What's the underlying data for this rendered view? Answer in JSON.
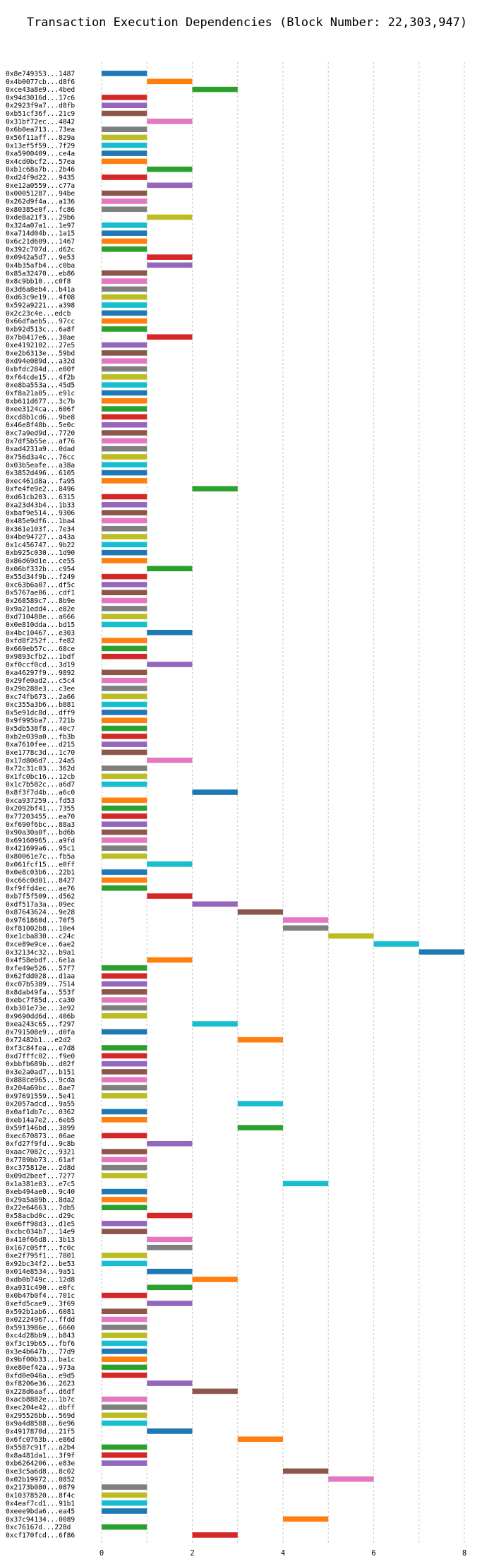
{
  "chart_data": {
    "type": "bar",
    "orientation": "horizontal",
    "title": "Transaction Execution Dependencies (Block Number: 22,303,947)",
    "xlabel": "",
    "ylabel": "",
    "xlim": [
      0,
      8
    ],
    "xticks": [
      "0",
      "2",
      "4",
      "6",
      "8"
    ],
    "grid": true,
    "colors": [
      "#1f77b4",
      "#ff7f0e",
      "#2ca02c",
      "#d62728",
      "#9467bd",
      "#8c564b",
      "#e377c2",
      "#7f7f7f",
      "#bcbd22",
      "#17becf"
    ],
    "rows": [
      {
        "tx": "0x8e749353...1487",
        "start": 0,
        "end": 1
      },
      {
        "tx": "0x4b0077cb...d8f6",
        "start": 1,
        "end": 2
      },
      {
        "tx": "0xce43a8e9...4bed",
        "start": 2,
        "end": 3
      },
      {
        "tx": "0x94d3016d...17c6",
        "start": 0,
        "end": 1
      },
      {
        "tx": "0x2923f9a7...d8fb",
        "start": 0,
        "end": 1
      },
      {
        "tx": "0xb51cf36f...21c9",
        "start": 0,
        "end": 1
      },
      {
        "tx": "0x31bf72ec...4842",
        "start": 1,
        "end": 2
      },
      {
        "tx": "0x6b0ea713...73ea",
        "start": 0,
        "end": 1
      },
      {
        "tx": "0x56f11aff...829a",
        "start": 0,
        "end": 1
      },
      {
        "tx": "0x13ef5f59...7f29",
        "start": 0,
        "end": 1
      },
      {
        "tx": "0xa5900409...ce4a",
        "start": 0,
        "end": 1
      },
      {
        "tx": "0x4cd0bcf2...57ea",
        "start": 0,
        "end": 1
      },
      {
        "tx": "0xb1c68a7b...2b46",
        "start": 1,
        "end": 2
      },
      {
        "tx": "0xd24f9d22...9435",
        "start": 0,
        "end": 1
      },
      {
        "tx": "0xe12a0559...c77a",
        "start": 1,
        "end": 2
      },
      {
        "tx": "0x00051287...94be",
        "start": 0,
        "end": 1
      },
      {
        "tx": "0x262d9f4a...a136",
        "start": 0,
        "end": 1
      },
      {
        "tx": "0x80385e0f...fc86",
        "start": 0,
        "end": 1
      },
      {
        "tx": "0xde8a21f3...29b6",
        "start": 1,
        "end": 2
      },
      {
        "tx": "0x324a07a1...1e97",
        "start": 0,
        "end": 1
      },
      {
        "tx": "0xa714d04b...1a15",
        "start": 0,
        "end": 1
      },
      {
        "tx": "0x6c21d609...1467",
        "start": 0,
        "end": 1
      },
      {
        "tx": "0x392c707d...d62c",
        "start": 0,
        "end": 1
      },
      {
        "tx": "0x0942a5d7...9e53",
        "start": 1,
        "end": 2
      },
      {
        "tx": "0x4b35afb4...c0ba",
        "start": 1,
        "end": 2
      },
      {
        "tx": "0x85a32470...eb86",
        "start": 0,
        "end": 1
      },
      {
        "tx": "0x8c9bb10...c0f8",
        "start": 0,
        "end": 1
      },
      {
        "tx": "0x3d6a8eb4...b41a",
        "start": 0,
        "end": 1
      },
      {
        "tx": "0xd63c9e19...4f08",
        "start": 0,
        "end": 1
      },
      {
        "tx": "0x592a9221...a398",
        "start": 0,
        "end": 1
      },
      {
        "tx": "0x2c23c4e...edcb",
        "start": 0,
        "end": 1
      },
      {
        "tx": "0x66dfaeb5...97cc",
        "start": 0,
        "end": 1
      },
      {
        "tx": "0xb92d513c...6a8f",
        "start": 0,
        "end": 1
      },
      {
        "tx": "0x7b0417e6...30ae",
        "start": 1,
        "end": 2
      },
      {
        "tx": "0xe4192102...27e5",
        "start": 0,
        "end": 1
      },
      {
        "tx": "0xe2b6313e...59bd",
        "start": 0,
        "end": 1
      },
      {
        "tx": "0xd94e089d...a32d",
        "start": 0,
        "end": 1
      },
      {
        "tx": "0xbfdc284d...e00f",
        "start": 0,
        "end": 1
      },
      {
        "tx": "0xf64cde15...4f2b",
        "start": 0,
        "end": 1
      },
      {
        "tx": "0xe8ba553a...45d5",
        "start": 0,
        "end": 1
      },
      {
        "tx": "0xf8a21a05...e91c",
        "start": 0,
        "end": 1
      },
      {
        "tx": "0xb611d677...3c7b",
        "start": 0,
        "end": 1
      },
      {
        "tx": "0xee3124ca...606f",
        "start": 0,
        "end": 1
      },
      {
        "tx": "0xcd8b1cd6...9be8",
        "start": 0,
        "end": 1
      },
      {
        "tx": "0x46e8f48b...5e0c",
        "start": 0,
        "end": 1
      },
      {
        "tx": "0xc7a9ed9d...7720",
        "start": 0,
        "end": 1
      },
      {
        "tx": "0x7df5b55e...af76",
        "start": 0,
        "end": 1
      },
      {
        "tx": "0xad4231a9...0dad",
        "start": 0,
        "end": 1
      },
      {
        "tx": "0x756d3a4c...76cc",
        "start": 0,
        "end": 1
      },
      {
        "tx": "0x03b5eafe...a38a",
        "start": 0,
        "end": 1
      },
      {
        "tx": "0x3852d496...6105",
        "start": 0,
        "end": 1
      },
      {
        "tx": "0xec461d8a...fa95",
        "start": 0,
        "end": 1
      },
      {
        "tx": "0xfe4fe9e2...8496",
        "start": 2,
        "end": 3
      },
      {
        "tx": "0xd61cb203...6315",
        "start": 0,
        "end": 1
      },
      {
        "tx": "0xa23d43b4...1b33",
        "start": 0,
        "end": 1
      },
      {
        "tx": "0xbaf9e514...9306",
        "start": 0,
        "end": 1
      },
      {
        "tx": "0x485e9df6...1ba4",
        "start": 0,
        "end": 1
      },
      {
        "tx": "0x361e103f...7e34",
        "start": 0,
        "end": 1
      },
      {
        "tx": "0x4be94727...a43a",
        "start": 0,
        "end": 1
      },
      {
        "tx": "0x1c456747...9b22",
        "start": 0,
        "end": 1
      },
      {
        "tx": "0xb925c030...1d90",
        "start": 0,
        "end": 1
      },
      {
        "tx": "0x86d69d1e...ce55",
        "start": 0,
        "end": 1
      },
      {
        "tx": "0x06bf332b...c954",
        "start": 1,
        "end": 2
      },
      {
        "tx": "0x55d34f9b...f249",
        "start": 0,
        "end": 1
      },
      {
        "tx": "0xc63b6a07...df5c",
        "start": 0,
        "end": 1
      },
      {
        "tx": "0x5767ae06...cdf1",
        "start": 0,
        "end": 1
      },
      {
        "tx": "0x268589c7...8b9e",
        "start": 0,
        "end": 1
      },
      {
        "tx": "0x9a21edd4...e82e",
        "start": 0,
        "end": 1
      },
      {
        "tx": "0xd710488e...a666",
        "start": 0,
        "end": 1
      },
      {
        "tx": "0x0e810dda...bd15",
        "start": 0,
        "end": 1
      },
      {
        "tx": "0x4bc10467...e303",
        "start": 1,
        "end": 2
      },
      {
        "tx": "0xfd8f252f...fe82",
        "start": 0,
        "end": 1
      },
      {
        "tx": "0x669eb57c...68ce",
        "start": 0,
        "end": 1
      },
      {
        "tx": "0x9893cfb2...1bdf",
        "start": 0,
        "end": 1
      },
      {
        "tx": "0xf0ccf0cd...3d19",
        "start": 1,
        "end": 2
      },
      {
        "tx": "0xa46297f9...9892",
        "start": 0,
        "end": 1
      },
      {
        "tx": "0x29fe0ad2...c5c4",
        "start": 0,
        "end": 1
      },
      {
        "tx": "0x29b288e3...c3ee",
        "start": 0,
        "end": 1
      },
      {
        "tx": "0xc74fb673...2a66",
        "start": 0,
        "end": 1
      },
      {
        "tx": "0xc355a3b6...b881",
        "start": 0,
        "end": 1
      },
      {
        "tx": "0x5e91dc8d...dff9",
        "start": 0,
        "end": 1
      },
      {
        "tx": "0x9f995ba7...721b",
        "start": 0,
        "end": 1
      },
      {
        "tx": "0x5db538f8...40c7",
        "start": 0,
        "end": 1
      },
      {
        "tx": "0xb2e039a0...fb3b",
        "start": 0,
        "end": 1
      },
      {
        "tx": "0xa7610fee...d215",
        "start": 0,
        "end": 1
      },
      {
        "tx": "0xe1778c3d...1c70",
        "start": 0,
        "end": 1
      },
      {
        "tx": "0x17d806d7...24a5",
        "start": 1,
        "end": 2
      },
      {
        "tx": "0x72c31c03...362d",
        "start": 0,
        "end": 1
      },
      {
        "tx": "0x1fc0bc16...12cb",
        "start": 0,
        "end": 1
      },
      {
        "tx": "0x1c7b582c...a6d7",
        "start": 0,
        "end": 1
      },
      {
        "tx": "0x8f3f7d4b...a6c0",
        "start": 2,
        "end": 3
      },
      {
        "tx": "0xca937259...fd53",
        "start": 0,
        "end": 1
      },
      {
        "tx": "0x2092bf41...7355",
        "start": 0,
        "end": 1
      },
      {
        "tx": "0x77203455...ea70",
        "start": 0,
        "end": 1
      },
      {
        "tx": "0xf690f6bc...88a3",
        "start": 0,
        "end": 1
      },
      {
        "tx": "0x90a30a0f...bd6b",
        "start": 0,
        "end": 1
      },
      {
        "tx": "0x69160965...a9fd",
        "start": 0,
        "end": 1
      },
      {
        "tx": "0x421699a6...95c1",
        "start": 0,
        "end": 1
      },
      {
        "tx": "0x80061e7c...fb5a",
        "start": 0,
        "end": 1
      },
      {
        "tx": "0x061fcf15...e0ff",
        "start": 1,
        "end": 2
      },
      {
        "tx": "0x0e8c03b6...22b1",
        "start": 0,
        "end": 1
      },
      {
        "tx": "0xc66c0d01...8427",
        "start": 0,
        "end": 1
      },
      {
        "tx": "0xf9ffd4ec...ae76",
        "start": 0,
        "end": 1
      },
      {
        "tx": "0xb7f5f509...d562",
        "start": 1,
        "end": 2
      },
      {
        "tx": "0xdf517a3a...09ec",
        "start": 2,
        "end": 3
      },
      {
        "tx": "0x87643624...9e28",
        "start": 3,
        "end": 4
      },
      {
        "tx": "0x9761860d...70f5",
        "start": 4,
        "end": 5
      },
      {
        "tx": "0xf81002b8...10e4",
        "start": 4,
        "end": 5
      },
      {
        "tx": "0xe1cba830...c24c",
        "start": 5,
        "end": 6
      },
      {
        "tx": "0xce89e9ce...6ae2",
        "start": 6,
        "end": 7
      },
      {
        "tx": "0x32134c32...b9a1",
        "start": 7,
        "end": 8
      },
      {
        "tx": "0x4f58ebdf...6e1a",
        "start": 1,
        "end": 2
      },
      {
        "tx": "0xfe49e526...57f7",
        "start": 0,
        "end": 1
      },
      {
        "tx": "0x62fdd028...d1aa",
        "start": 0,
        "end": 1
      },
      {
        "tx": "0xc07b5389...7514",
        "start": 0,
        "end": 1
      },
      {
        "tx": "0x8dab49fa...553f",
        "start": 0,
        "end": 1
      },
      {
        "tx": "0xebc7f85d...ca30",
        "start": 0,
        "end": 1
      },
      {
        "tx": "0xb301e73e...3e92",
        "start": 0,
        "end": 1
      },
      {
        "tx": "0x9690dd6d...406b",
        "start": 0,
        "end": 1
      },
      {
        "tx": "0xea243c65...f297",
        "start": 2,
        "end": 3
      },
      {
        "tx": "0x791508e9...d0fa",
        "start": 0,
        "end": 1
      },
      {
        "tx": "0x72482b1...e2d2",
        "start": 3,
        "end": 4
      },
      {
        "tx": "0xf3c84fea...e7d8",
        "start": 0,
        "end": 1
      },
      {
        "tx": "0xd7fffc02...f9e0",
        "start": 0,
        "end": 1
      },
      {
        "tx": "0xbbfb689b...d02f",
        "start": 0,
        "end": 1
      },
      {
        "tx": "0x3e2a0ad7...b151",
        "start": 0,
        "end": 1
      },
      {
        "tx": "0x888ce965...9cda",
        "start": 0,
        "end": 1
      },
      {
        "tx": "0x204a69bc...8ae7",
        "start": 0,
        "end": 1
      },
      {
        "tx": "0x97691559...5e41",
        "start": 0,
        "end": 1
      },
      {
        "tx": "0x2057adcd...9a55",
        "start": 3,
        "end": 4
      },
      {
        "tx": "0x0af1db7c...0362",
        "start": 0,
        "end": 1
      },
      {
        "tx": "0xeb14a7e2...6eb5",
        "start": 0,
        "end": 1
      },
      {
        "tx": "0x59f146bd...3899",
        "start": 3,
        "end": 4
      },
      {
        "tx": "0xec670873...06ae",
        "start": 0,
        "end": 1
      },
      {
        "tx": "0xfd27f9fd...9c8b",
        "start": 1,
        "end": 2
      },
      {
        "tx": "0xaac7082c...9321",
        "start": 0,
        "end": 1
      },
      {
        "tx": "0x7789bb73...61af",
        "start": 0,
        "end": 1
      },
      {
        "tx": "0xc375812e...2d8d",
        "start": 0,
        "end": 1
      },
      {
        "tx": "0x09d2beef...7277",
        "start": 0,
        "end": 1
      },
      {
        "tx": "0x1a381e03...e7c5",
        "start": 4,
        "end": 5
      },
      {
        "tx": "0xeb494ae0...9c40",
        "start": 0,
        "end": 1
      },
      {
        "tx": "0x29a5a89b...8da2",
        "start": 0,
        "end": 1
      },
      {
        "tx": "0x22e64663...7db5",
        "start": 0,
        "end": 1
      },
      {
        "tx": "0x58acbd0c...d29c",
        "start": 1,
        "end": 2
      },
      {
        "tx": "0xe6ff98d3...d1e5",
        "start": 0,
        "end": 1
      },
      {
        "tx": "0xcbc034b7...14e9",
        "start": 0,
        "end": 1
      },
      {
        "tx": "0x410f66d8...3b13",
        "start": 1,
        "end": 2
      },
      {
        "tx": "0x167c05ff...fc0c",
        "start": 1,
        "end": 2
      },
      {
        "tx": "0xe2f795f1...7801",
        "start": 0,
        "end": 1
      },
      {
        "tx": "0x92bc34f2...be53",
        "start": 0,
        "end": 1
      },
      {
        "tx": "0x014e8534...9a51",
        "start": 1,
        "end": 2
      },
      {
        "tx": "0xdb0b749c...12d8",
        "start": 2,
        "end": 3
      },
      {
        "tx": "0xa931c490...e0fc",
        "start": 1,
        "end": 2
      },
      {
        "tx": "0x0b47b0f4...701c",
        "start": 0,
        "end": 1
      },
      {
        "tx": "0xefd5cae9...3f69",
        "start": 1,
        "end": 2
      },
      {
        "tx": "0x592b1ab6...6081",
        "start": 0,
        "end": 1
      },
      {
        "tx": "0x02224967...ffdd",
        "start": 0,
        "end": 1
      },
      {
        "tx": "0x5913986e...6660",
        "start": 0,
        "end": 1
      },
      {
        "tx": "0xc4d28bb9...b843",
        "start": 0,
        "end": 1
      },
      {
        "tx": "0xf3c19b65...fbf6",
        "start": 0,
        "end": 1
      },
      {
        "tx": "0x3e4b647b...77d9",
        "start": 0,
        "end": 1
      },
      {
        "tx": "0x9bf00b33...ba1c",
        "start": 0,
        "end": 1
      },
      {
        "tx": "0xe80ef42a...973a",
        "start": 0,
        "end": 1
      },
      {
        "tx": "0xfd0e046a...e9d5",
        "start": 0,
        "end": 1
      },
      {
        "tx": "0xf8206e36...2623",
        "start": 1,
        "end": 2
      },
      {
        "tx": "0x228d6aaf...d6df",
        "start": 2,
        "end": 3
      },
      {
        "tx": "0xacb8882e...1b7c",
        "start": 0,
        "end": 1
      },
      {
        "tx": "0xec204e42...dbff",
        "start": 0,
        "end": 1
      },
      {
        "tx": "0x295526bb...569d",
        "start": 0,
        "end": 1
      },
      {
        "tx": "0x9a4d8588...6e96",
        "start": 0,
        "end": 1
      },
      {
        "tx": "0x4917870d...21f5",
        "start": 1,
        "end": 2
      },
      {
        "tx": "0x6fc0763b...e86d",
        "start": 3,
        "end": 4
      },
      {
        "tx": "0x5587c91f...a2b4",
        "start": 0,
        "end": 1
      },
      {
        "tx": "0x8a481da1...3f9f",
        "start": 0,
        "end": 1
      },
      {
        "tx": "0xb6264206...e83e",
        "start": 0,
        "end": 1
      },
      {
        "tx": "0xe3c5a6d8...8c02",
        "start": 4,
        "end": 5
      },
      {
        "tx": "0x02b19972...0852",
        "start": 5,
        "end": 6
      },
      {
        "tx": "0x2173b080...0879",
        "start": 0,
        "end": 1
      },
      {
        "tx": "0x10378520...8f4c",
        "start": 0,
        "end": 1
      },
      {
        "tx": "0x4eaf7cd1...91b1",
        "start": 0,
        "end": 1
      },
      {
        "tx": "0xeee9bda6...ea45",
        "start": 0,
        "end": 1
      },
      {
        "tx": "0x37c94134...0089",
        "start": 4,
        "end": 5
      },
      {
        "tx": "0xc76167d...228d",
        "start": 0,
        "end": 1
      },
      {
        "tx": "0xcf170fcd...6f86",
        "start": 2,
        "end": 3
      }
    ]
  }
}
